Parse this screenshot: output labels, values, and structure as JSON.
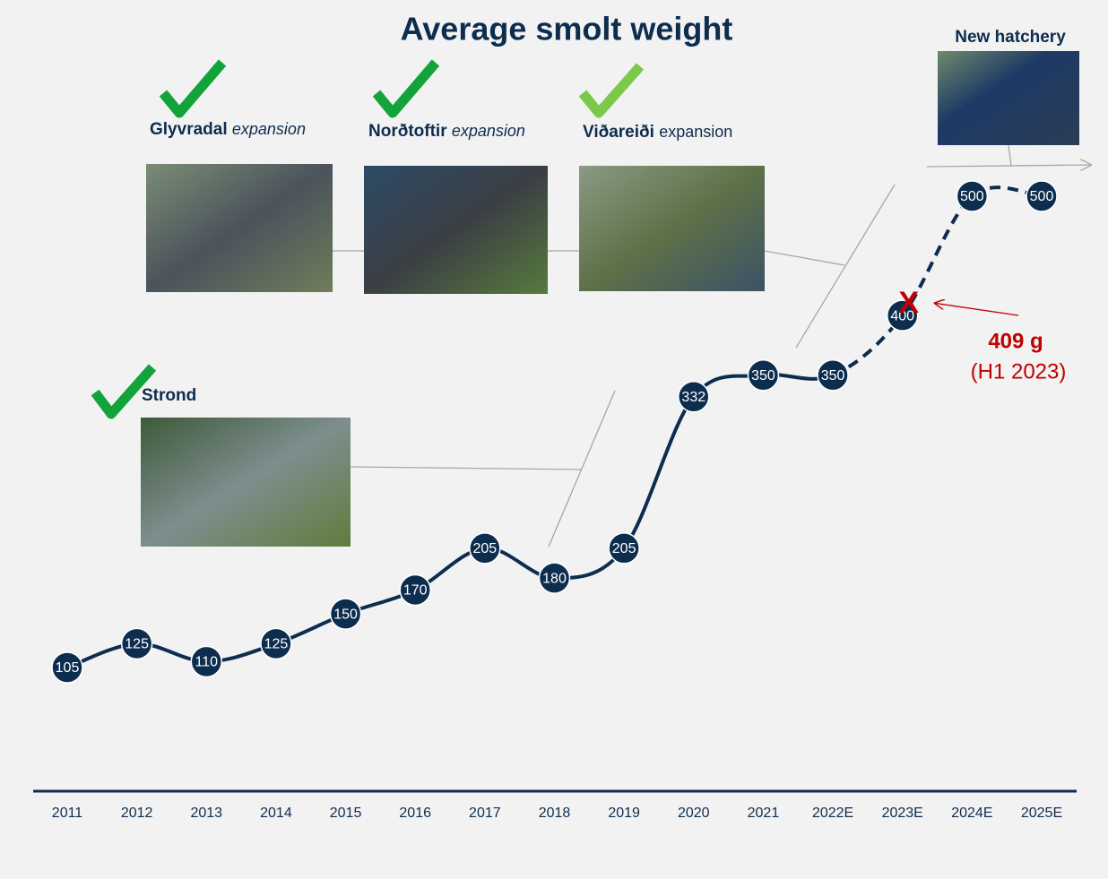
{
  "chart_data": {
    "type": "line",
    "title": "Average smolt weight",
    "categories": [
      "2011",
      "2012",
      "2013",
      "2014",
      "2015",
      "2016",
      "2017",
      "2018",
      "2019",
      "2020",
      "2021",
      "2022E",
      "2023E",
      "2024E",
      "2025E"
    ],
    "series": [
      {
        "color": "#0d2d4f",
        "values": [
          105,
          125,
          110,
          125,
          150,
          170,
          205,
          180,
          205,
          332,
          350,
          350,
          400,
          500,
          500
        ]
      }
    ],
    "dashed_from": "2022E",
    "annotation": {
      "marker": "X",
      "value": 409,
      "label": "409 g",
      "sublabel": "(H1 2023)",
      "color": "#c00000"
    },
    "milestones": [
      {
        "name": "Glyvradal",
        "note": "expansion"
      },
      {
        "name": "Norðtoftir",
        "note": "expansion"
      },
      {
        "name": "Viðareiði",
        "note": "expansion"
      },
      {
        "name": "Strond"
      },
      {
        "name": "New hatchery"
      }
    ]
  }
}
